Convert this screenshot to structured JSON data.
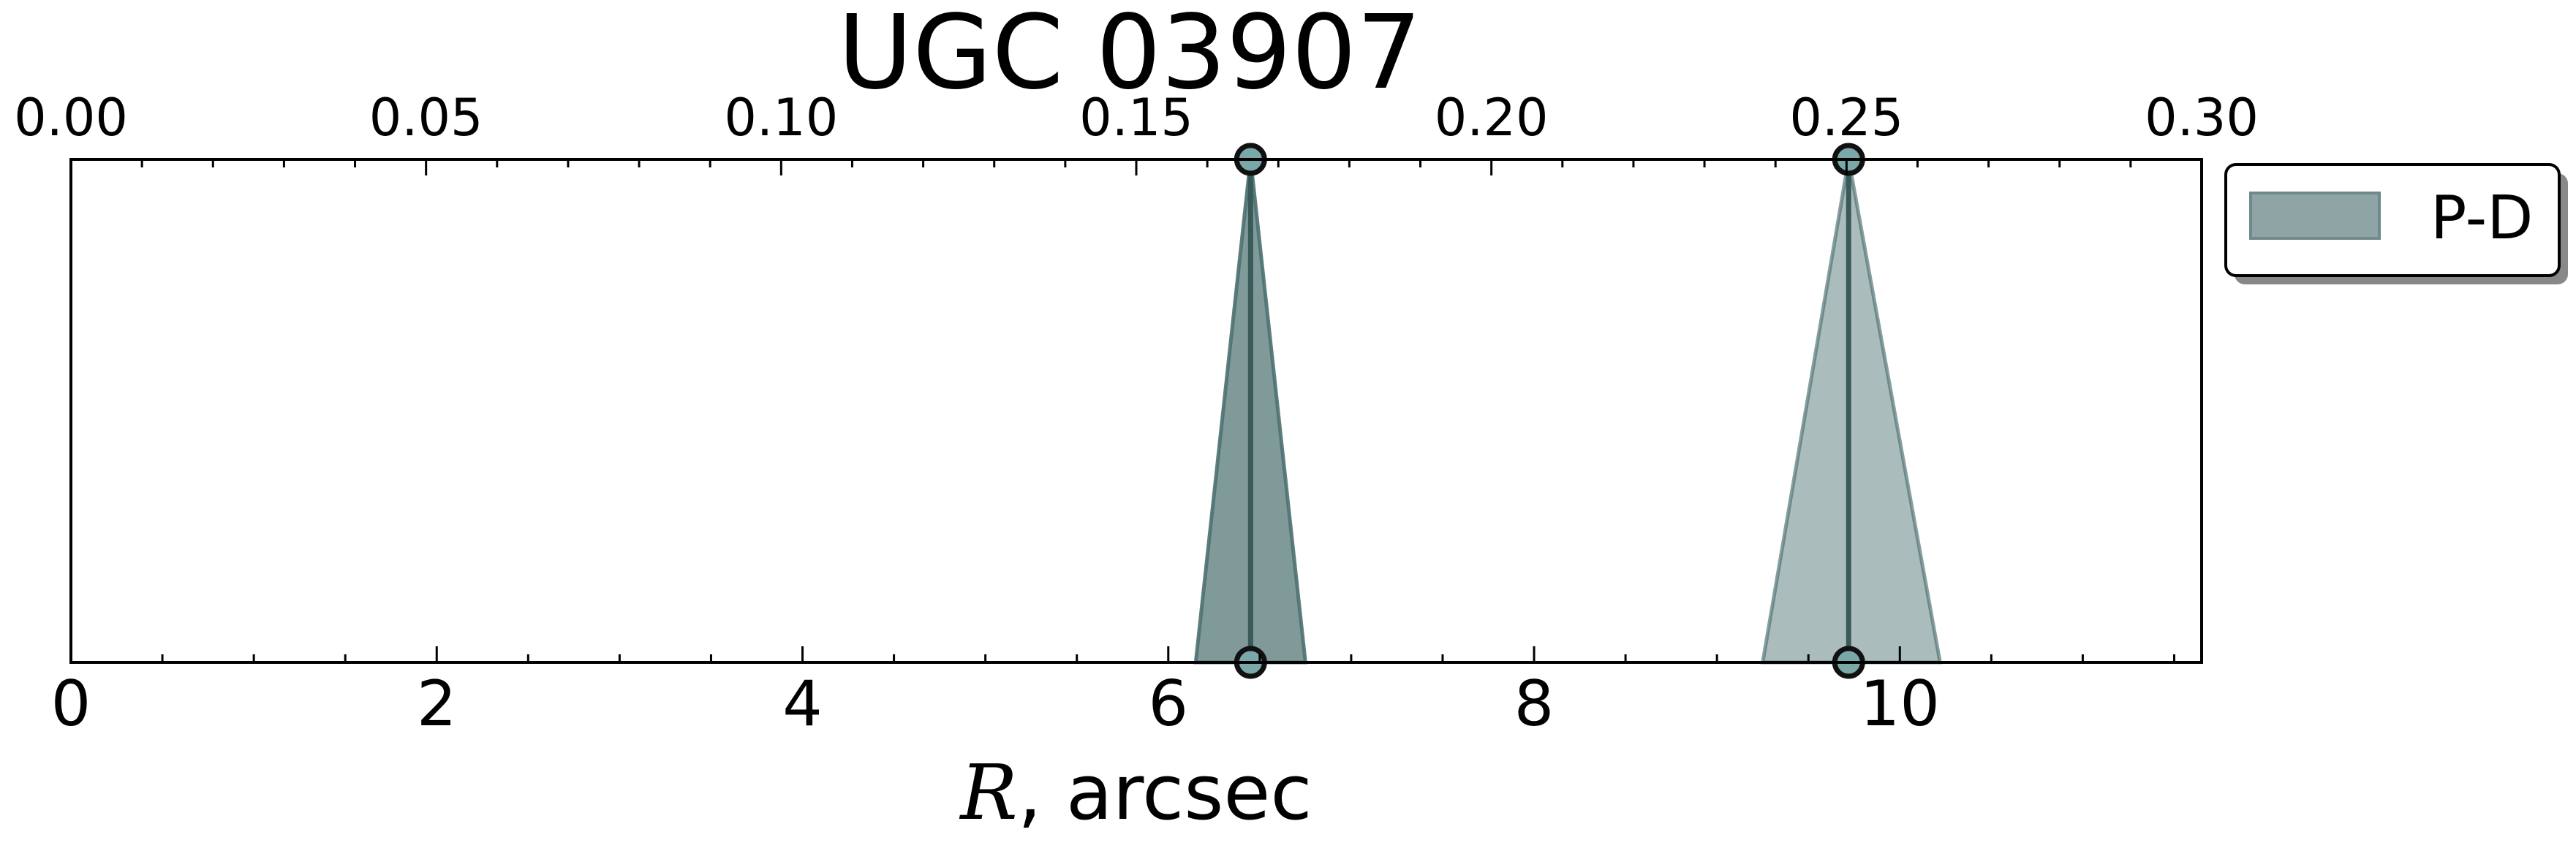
{
  "chart_data": {
    "type": "area",
    "title": "UGC 03907",
    "xlabel": {
      "symbol": "R",
      "rest": ", arcsec"
    },
    "x_bottom": {
      "lim": [
        0,
        11.65
      ],
      "ticks": [
        0,
        2,
        4,
        6,
        8,
        10
      ],
      "tick_labels": [
        "0",
        "2",
        "4",
        "6",
        "8",
        "10"
      ],
      "minor_step": 0.5
    },
    "x_top": {
      "lim": [
        0,
        0.3
      ],
      "ticks": [
        0.0,
        0.05,
        0.1,
        0.15,
        0.2,
        0.25,
        0.3
      ],
      "tick_labels": [
        "0.00",
        "0.05",
        "0.10",
        "0.15",
        "0.20",
        "0.25",
        "0.30"
      ],
      "minor_step": 0.01
    },
    "y_visible": false,
    "grid": false,
    "legend": {
      "entries": [
        "P-D"
      ],
      "placement": "outside-right-top"
    },
    "series": [
      {
        "name": "P-D",
        "color": "#4f7272",
        "features": [
          {
            "top_x": 6.45,
            "bottom_x": 6.45,
            "base_left": 6.15,
            "base_right": 6.75,
            "alpha": 0.72
          },
          {
            "top_x": 9.72,
            "bottom_x": 9.72,
            "base_left": 9.25,
            "base_right": 10.22,
            "alpha": 0.48
          }
        ]
      }
    ],
    "colors": {
      "fill": "#4f7272",
      "center_line": "#3a5a5a",
      "marker_fill": "#7aa8a8",
      "legend_patch": "#8fa5a5"
    }
  }
}
